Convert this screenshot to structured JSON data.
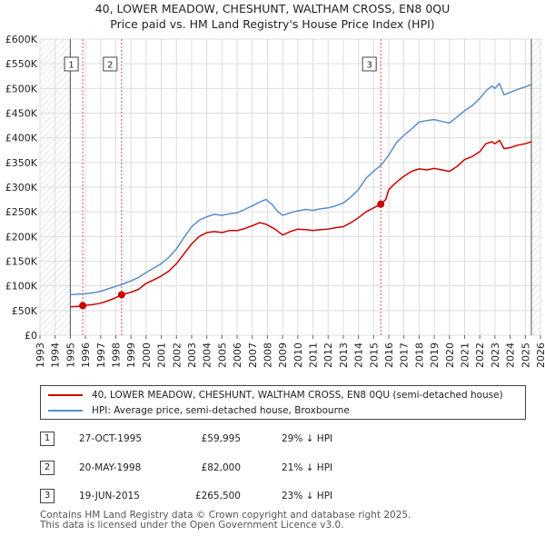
{
  "chart_data": {
    "type": "line",
    "title": "40, LOWER MEADOW, CHESHUNT, WALTHAM CROSS, EN8 0QU",
    "subtitle": "Price paid vs. HM Land Registry's House Price Index (HPI)",
    "ylim": [
      0,
      600000
    ],
    "xlim": [
      1993,
      2026
    ],
    "y_ticks": [
      0,
      50000,
      100000,
      150000,
      200000,
      250000,
      300000,
      350000,
      400000,
      450000,
      500000,
      550000,
      600000
    ],
    "y_tick_labels": [
      "£0",
      "£50K",
      "£100K",
      "£150K",
      "£200K",
      "£250K",
      "£300K",
      "£350K",
      "£400K",
      "£450K",
      "£500K",
      "£550K",
      "£600K"
    ],
    "x_ticks": [
      1993,
      1994,
      1995,
      1996,
      1997,
      1998,
      1999,
      2000,
      2001,
      2002,
      2003,
      2004,
      2005,
      2006,
      2007,
      2008,
      2009,
      2010,
      2011,
      2012,
      2013,
      2014,
      2015,
      2016,
      2017,
      2018,
      2019,
      2020,
      2021,
      2022,
      2023,
      2024,
      2025,
      2026
    ],
    "x_tick_labels": [
      "1993",
      "1994",
      "1995",
      "1996",
      "1997",
      "1998",
      "1999",
      "2000",
      "2001",
      "2002",
      "2003",
      "2004",
      "2005",
      "2006",
      "2007",
      "2008",
      "2009",
      "2010",
      "2011",
      "2012",
      "2013",
      "2014",
      "2015",
      "2016",
      "2017",
      "2018",
      "2019",
      "2020",
      "2021",
      "2022",
      "2023",
      "2024",
      "2025",
      "2026"
    ],
    "data_range": [
      1995.0,
      2025.4
    ],
    "series": [
      {
        "name": "40, LOWER MEADOW, CHESHUNT, WALTHAM CROSS, EN8 0QU (semi-detached house)",
        "color": "#cc0000",
        "x": [
          1995.0,
          1995.5,
          1995.82,
          1996.5,
          1997.0,
          1997.5,
          1998.0,
          1998.38,
          1999.0,
          1999.5,
          2000.0,
          2000.5,
          2001.0,
          2001.5,
          2002.0,
          2002.5,
          2003.0,
          2003.5,
          2004.0,
          2004.5,
          2005.0,
          2005.5,
          2006.0,
          2006.5,
          2007.0,
          2007.5,
          2007.9,
          2008.5,
          2009.0,
          2009.5,
          2010.0,
          2010.5,
          2011.0,
          2011.5,
          2012.0,
          2012.5,
          2013.0,
          2013.5,
          2014.0,
          2014.5,
          2015.0,
          2015.47,
          2015.8,
          2016.0,
          2016.5,
          2017.0,
          2017.5,
          2018.0,
          2018.5,
          2019.0,
          2019.5,
          2020.0,
          2020.5,
          2021.0,
          2021.5,
          2022.0,
          2022.4,
          2022.8,
          2023.0,
          2023.3,
          2023.6,
          2024.0,
          2024.5,
          2025.0,
          2025.4
        ],
        "values": [
          57500,
          58500,
          59995,
          62000,
          65000,
          70000,
          76000,
          82000,
          87000,
          93000,
          105000,
          112000,
          120000,
          130000,
          145000,
          165000,
          185000,
          200000,
          208000,
          210000,
          208000,
          212000,
          212000,
          216000,
          222000,
          228000,
          225000,
          215000,
          203000,
          210000,
          215000,
          214000,
          212000,
          214000,
          215000,
          218000,
          220000,
          228000,
          238000,
          250000,
          258000,
          265500,
          275000,
          295000,
          310000,
          322000,
          332000,
          337000,
          335000,
          338000,
          335000,
          332000,
          342000,
          356000,
          362000,
          372000,
          388000,
          392000,
          388000,
          395000,
          378000,
          380000,
          385000,
          388000,
          392000
        ]
      },
      {
        "name": "HPI: Average price, semi-detached house, Broxbourne",
        "color": "#5b8dc9",
        "x": [
          1995.0,
          1995.5,
          1996.0,
          1996.5,
          1997.0,
          1997.5,
          1998.0,
          1998.5,
          1999.0,
          1999.5,
          2000.0,
          2000.5,
          2001.0,
          2001.5,
          2002.0,
          2002.5,
          2003.0,
          2003.5,
          2004.0,
          2004.5,
          2005.0,
          2005.5,
          2006.0,
          2006.5,
          2007.0,
          2007.5,
          2007.9,
          2008.3,
          2008.7,
          2009.0,
          2009.5,
          2010.0,
          2010.5,
          2011.0,
          2011.5,
          2012.0,
          2012.5,
          2013.0,
          2013.5,
          2014.0,
          2014.5,
          2015.0,
          2015.5,
          2016.0,
          2016.5,
          2017.0,
          2017.5,
          2018.0,
          2018.5,
          2019.0,
          2019.5,
          2020.0,
          2020.5,
          2021.0,
          2021.5,
          2022.0,
          2022.4,
          2022.8,
          2023.0,
          2023.3,
          2023.6,
          2024.0,
          2024.5,
          2025.0,
          2025.4
        ],
        "values": [
          82000,
          83000,
          84000,
          86000,
          89000,
          94000,
          99000,
          104000,
          110000,
          117000,
          127000,
          136000,
          145000,
          158000,
          175000,
          198000,
          220000,
          233000,
          240000,
          245000,
          243000,
          246000,
          248000,
          255000,
          262000,
          270000,
          275000,
          265000,
          250000,
          243000,
          248000,
          252000,
          255000,
          253000,
          256000,
          258000,
          262000,
          268000,
          280000,
          295000,
          318000,
          332000,
          345000,
          365000,
          390000,
          405000,
          418000,
          432000,
          435000,
          437000,
          433000,
          430000,
          442000,
          455000,
          465000,
          480000,
          495000,
          505000,
          500000,
          510000,
          487000,
          492000,
          498000,
          503000,
          508000
        ]
      }
    ],
    "sale_markers": [
      {
        "label": "1",
        "x": 1995.82,
        "value": 59995
      },
      {
        "label": "2",
        "x": 1998.38,
        "value": 82000
      },
      {
        "label": "3",
        "x": 2015.47,
        "value": 265500
      }
    ]
  },
  "legend": {
    "property_label": "40, LOWER MEADOW, CHESHUNT, WALTHAM CROSS, EN8 0QU (semi-detached house)",
    "hpi_label": "HPI: Average price, semi-detached house, Broxbourne"
  },
  "transactions": [
    {
      "num": "1",
      "date": "27-OCT-1995",
      "price": "£59,995",
      "hpi": "29% ↓ HPI"
    },
    {
      "num": "2",
      "date": "20-MAY-1998",
      "price": "£82,000",
      "hpi": "21% ↓ HPI"
    },
    {
      "num": "3",
      "date": "19-JUN-2015",
      "price": "£265,500",
      "hpi": "23% ↓ HPI"
    }
  ],
  "footer": {
    "line1": "Contains HM Land Registry data © Crown copyright and database right 2025.",
    "line2": "This data is licensed under the Open Government Licence v3.0."
  }
}
